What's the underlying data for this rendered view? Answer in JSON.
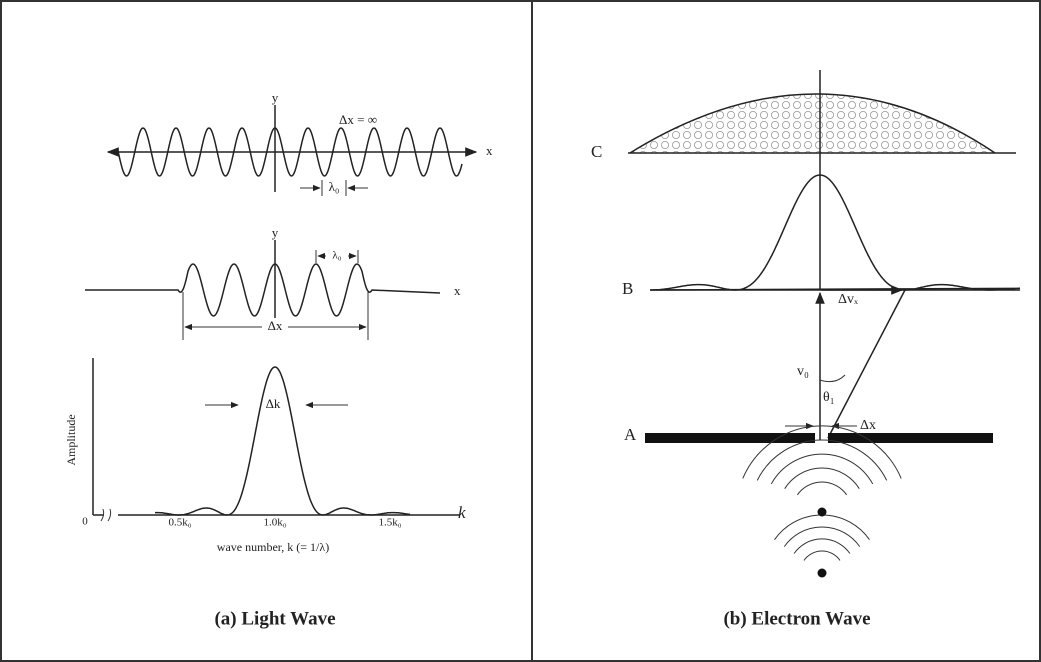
{
  "panels": [
    {
      "caption": "(a) Light Wave",
      "wave1": {
        "y": "y",
        "x": "x",
        "delta": "Δx = ∞",
        "lambda": "λ₀"
      },
      "wave2": {
        "y": "y",
        "x": "x",
        "lambda": "λ₀",
        "delta": "Δx"
      },
      "spectrum": {
        "ylabel": "Amplitude",
        "delta": "Δk",
        "origin": "0",
        "ticks": [
          "0.5k₀",
          "1.0k₀",
          "1.5k₀"
        ],
        "xvar": "k",
        "xlabel": "wave number, k (= 1/λ)"
      }
    },
    {
      "caption": "(b) Electron Wave",
      "screen_c": "C",
      "screen_b": "B",
      "delta_v": "Δvₓ",
      "velocity": "v₀",
      "angle": "θ₁",
      "slit": "A",
      "delta_x": "Δx"
    }
  ]
}
